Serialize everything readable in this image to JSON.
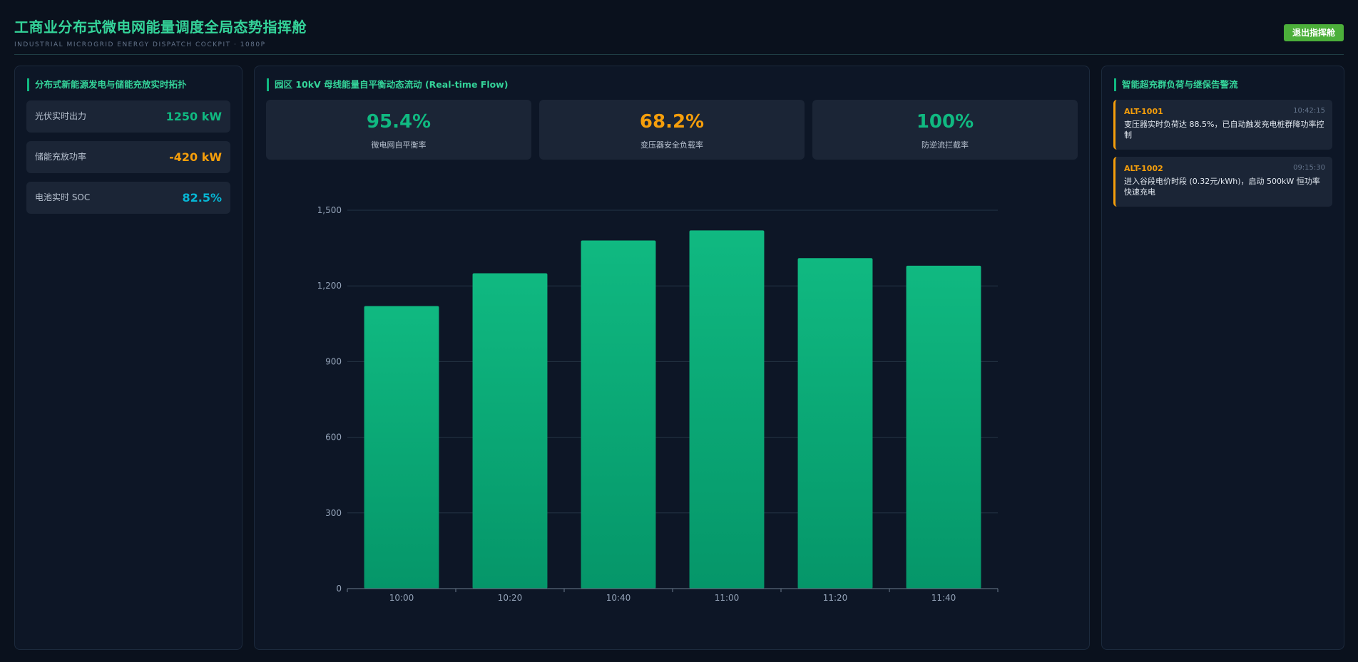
{
  "header": {
    "title": "工商业分布式微电网能量调度全局态势指挥舱",
    "subtitle": "INDUSTRIAL MICROGRID ENERGY DISPATCH COCKPIT · 1080P",
    "exit_label": "退出指挥舱"
  },
  "left": {
    "title": "分布式新能源发电与储能充放实时拓扑",
    "metrics": [
      {
        "label": "光伏实时出力",
        "value": "1250 kW",
        "color": "#10b981"
      },
      {
        "label": "储能充放功率",
        "value": "-420 kW",
        "color": "#f59e0b"
      },
      {
        "label": "电池实时 SOC",
        "value": "82.5%",
        "color": "#06b6d4"
      }
    ]
  },
  "center": {
    "title": "园区 10kV 母线能量自平衡动态流动 (Real-time Flow)",
    "kpis": [
      {
        "value": "95.4%",
        "label": "微电网自平衡率",
        "color": "#10b981"
      },
      {
        "value": "68.2%",
        "label": "变压器安全负载率",
        "color": "#f59e0b"
      },
      {
        "value": "100%",
        "label": "防逆流拦截率",
        "color": "#10b981"
      }
    ]
  },
  "chart_data": {
    "type": "bar",
    "categories": [
      "10:00",
      "10:20",
      "10:40",
      "11:00",
      "11:20",
      "11:40"
    ],
    "values": [
      1120,
      1250,
      1380,
      1420,
      1310,
      1280
    ],
    "ylim": [
      0,
      1500
    ],
    "yticks": [
      "0",
      "300",
      "600",
      "900",
      "1,200",
      "1,500"
    ],
    "grid": true,
    "bar_color_top": "#10b981",
    "bar_color_bottom": "#059669"
  },
  "right": {
    "title": "智能超充群负荷与继保告警流",
    "alerts": [
      {
        "id": "ALT-1001",
        "time": "10:42:15",
        "message": "变压器实时负荷达 88.5%，已自动触发充电桩群降功率控制"
      },
      {
        "id": "ALT-1002",
        "time": "09:15:30",
        "message": "进入谷段电价时段 (0.32元/kWh)，启动 500kW 恒功率快速充电"
      }
    ]
  }
}
